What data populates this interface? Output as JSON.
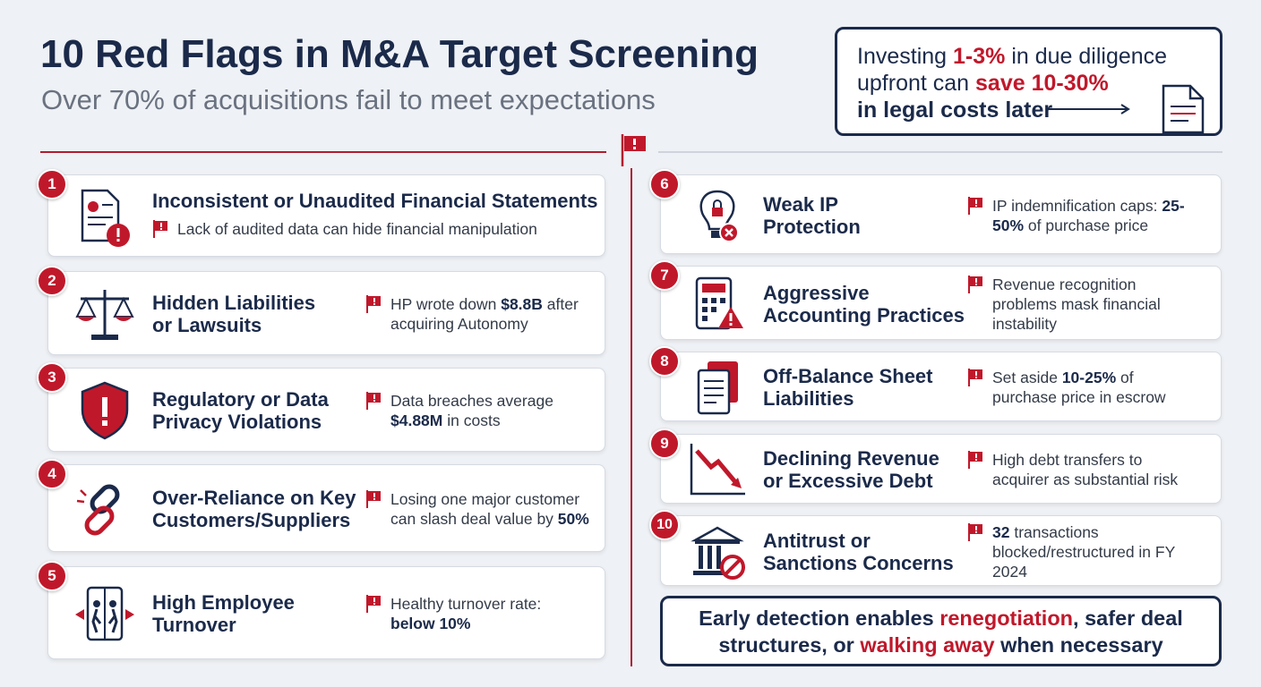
{
  "header": {
    "title": "10 Red Flags in M&A Target Screening",
    "subtitle": "Over 70% of acquisitions fail to meet expectations"
  },
  "callout": {
    "segments": [
      "Investing ",
      "1-3%",
      " in due diligence upfront can ",
      "save 10-30%",
      "in legal costs later"
    ]
  },
  "flags": [
    {
      "number": "1",
      "title": [
        "Inconsistent or Unaudited Financial Statements"
      ],
      "note": [
        "Lack of audited data can hide financial manipulation"
      ]
    },
    {
      "number": "2",
      "title": [
        "Hidden Liabilities",
        "or Lawsuits"
      ],
      "note": [
        "HP wrote down ",
        {
          "bold": "$8.8B"
        },
        " after acquiring Autonomy"
      ]
    },
    {
      "number": "3",
      "title": [
        "Regulatory or Data",
        "Privacy Violations"
      ],
      "note": [
        "Data breaches average ",
        {
          "bold": "$4.88M"
        },
        " in costs"
      ]
    },
    {
      "number": "4",
      "title": [
        "Over-Reliance on Key",
        "Customers/Suppliers"
      ],
      "note": [
        "Losing one major customer can slash deal value by ",
        {
          "bold": "50%"
        }
      ]
    },
    {
      "number": "5",
      "title": [
        "High Employee",
        "Turnover"
      ],
      "note": [
        "Healthy turnover rate: ",
        {
          "bold": "below 10%"
        }
      ]
    },
    {
      "number": "6",
      "title": [
        "Weak IP",
        "Protection"
      ],
      "note": [
        "IP indemnification caps: ",
        {
          "bold": "25-50%"
        },
        " of purchase price"
      ]
    },
    {
      "number": "7",
      "title": [
        "Aggressive",
        "Accounting Practices"
      ],
      "note": [
        "Revenue recognition problems mask financial instability"
      ]
    },
    {
      "number": "8",
      "title": [
        "Off-Balance Sheet",
        "Liabilities"
      ],
      "note": [
        "Set aside ",
        {
          "bold": "10-25%"
        },
        " of purchase price in escrow"
      ]
    },
    {
      "number": "9",
      "title": [
        "Declining Revenue",
        "or Excessive Debt"
      ],
      "note": [
        "High debt transfers to acquirer as substantial risk"
      ]
    },
    {
      "number": "10",
      "title": [
        "Antitrust or",
        "Sanctions Concerns"
      ],
      "note": [
        {
          "bold": "32"
        },
        " transactions blocked/restructured in FY 2024"
      ]
    }
  ],
  "footer": {
    "segments": [
      "Early detection enables ",
      "renegotiation",
      ", safer deal structures, or ",
      "walking away",
      " when necessary"
    ]
  }
}
